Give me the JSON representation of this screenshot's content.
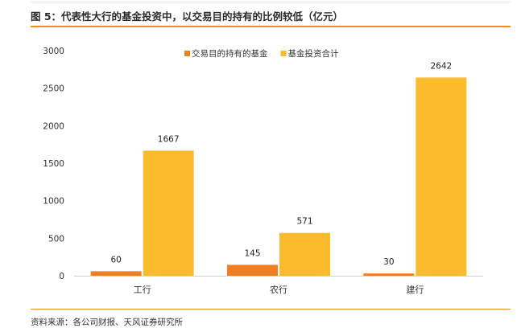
{
  "header": {
    "title": "图 5：代表性大行的基金投资中，以交易目的持有的比例较低（亿元）"
  },
  "footer": {
    "source": "资料来源：各公司财报、天风证券研究所"
  },
  "colors": {
    "accent_rule": "#f08a24",
    "series_trading": "#f07f22",
    "series_total": "#fbbb2c",
    "axis": "#d0d0d0"
  },
  "chart_data": {
    "type": "bar",
    "categories": [
      "工行",
      "农行",
      "建行"
    ],
    "series": [
      {
        "name": "交易目的持有的基金",
        "values": [
          60,
          145,
          30
        ]
      },
      {
        "name": "基金投资合计",
        "values": [
          1667,
          571,
          2642
        ]
      }
    ],
    "ylim": [
      0,
      3000
    ],
    "yticks": [
      0,
      500,
      1000,
      1500,
      2000,
      2500,
      3000
    ],
    "xlabel": "",
    "ylabel": "",
    "legend": "top-center",
    "grid": false
  }
}
